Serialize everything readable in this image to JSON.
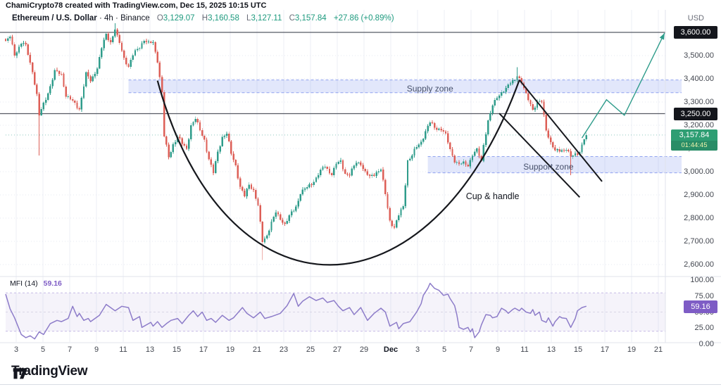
{
  "attribution": "ChamiCrypto78 created with TradingView.com, Dec 15, 2025 10:15 UTC",
  "legend": {
    "symbol": "Ethereum / U.S. Dollar",
    "separator": "·",
    "interval": "4h",
    "exchange": "Binance",
    "ohlc": [
      {
        "k": "O",
        "v": "3,129.07"
      },
      {
        "k": "H",
        "v": "3,160.58"
      },
      {
        "k": "L",
        "v": "3,127.11"
      },
      {
        "k": "C",
        "v": "3,157.84"
      }
    ],
    "change": "+27.86 (+0.89%)"
  },
  "price_scale": {
    "currency_label": "USD",
    "ticks": [
      {
        "v": 3600,
        "t": "3,600.00"
      },
      {
        "v": 3500,
        "t": "3,500.00"
      },
      {
        "v": 3400,
        "t": "3,400.00"
      },
      {
        "v": 3300,
        "t": "3,300.00"
      },
      {
        "v": 3200,
        "t": "3,200.00"
      },
      {
        "v": 3100,
        "t": "3,100.00"
      },
      {
        "v": 3000,
        "t": "3,000.00"
      },
      {
        "v": 2900,
        "t": "2,900.00"
      },
      {
        "v": 2800,
        "t": "2,800.00"
      },
      {
        "v": 2700,
        "t": "2,700.00"
      },
      {
        "v": 2600,
        "t": "2,600.00"
      }
    ],
    "line_labels": [
      {
        "value": 3600,
        "text": "3,600.00"
      },
      {
        "value": 3250,
        "text": "3,250.00"
      }
    ],
    "last_price": {
      "value": 3157.84,
      "text": "3,157.84",
      "countdown": "01:44:45"
    }
  },
  "time_scale": {
    "labels": [
      "3",
      "5",
      "7",
      "9",
      "11",
      "13",
      "15",
      "17",
      "19",
      "21",
      "23",
      "25",
      "27",
      "29",
      "Dec",
      "3",
      "5",
      "7",
      "9",
      "11",
      "13",
      "15",
      "17",
      "19",
      "21"
    ]
  },
  "chart_data": {
    "type": "candlestick",
    "title": "Ethereum / U.S. Dollar · 4h · Binance",
    "ylabel": "USD",
    "ylim": [
      2600,
      3660
    ],
    "candle_count": 261,
    "last_close": 3157.84,
    "close_path_anchors": [
      [
        0,
        3560
      ],
      [
        2,
        3578
      ],
      [
        4,
        3505
      ],
      [
        7,
        3555
      ],
      [
        9,
        3540
      ],
      [
        12,
        3435
      ],
      [
        14,
        3330
      ],
      [
        15,
        3240
      ],
      [
        17,
        3290
      ],
      [
        20,
        3370
      ],
      [
        22,
        3430
      ],
      [
        25,
        3420
      ],
      [
        27,
        3330
      ],
      [
        30,
        3300
      ],
      [
        33,
        3272
      ],
      [
        36,
        3420
      ],
      [
        38,
        3390
      ],
      [
        41,
        3450
      ],
      [
        43,
        3530
      ],
      [
        45,
        3590
      ],
      [
        47,
        3560
      ],
      [
        49,
        3615
      ],
      [
        50,
        3580
      ],
      [
        53,
        3490
      ],
      [
        55,
        3455
      ],
      [
        57,
        3500
      ],
      [
        60,
        3540
      ],
      [
        62,
        3570
      ],
      [
        64,
        3550
      ],
      [
        66,
        3555
      ],
      [
        68,
        3480
      ],
      [
        70,
        3340
      ],
      [
        71,
        3150
      ],
      [
        73,
        3062
      ],
      [
        75,
        3120
      ],
      [
        77,
        3150
      ],
      [
        79,
        3118
      ],
      [
        81,
        3100
      ],
      [
        83,
        3200
      ],
      [
        85,
        3225
      ],
      [
        87,
        3180
      ],
      [
        89,
        3140
      ],
      [
        91,
        3050
      ],
      [
        93,
        2992
      ],
      [
        95,
        3090
      ],
      [
        97,
        3150
      ],
      [
        99,
        3160
      ],
      [
        101,
        3080
      ],
      [
        103,
        3030
      ],
      [
        105,
        2930
      ],
      [
        107,
        2892
      ],
      [
        109,
        2950
      ],
      [
        111,
        2920
      ],
      [
        113,
        2850
      ],
      [
        115,
        2700
      ],
      [
        117,
        2730
      ],
      [
        119,
        2780
      ],
      [
        121,
        2822
      ],
      [
        123,
        2800
      ],
      [
        125,
        2775
      ],
      [
        128,
        2820
      ],
      [
        130,
        2852
      ],
      [
        132,
        2910
      ],
      [
        135,
        2930
      ],
      [
        137,
        2950
      ],
      [
        139,
        2975
      ],
      [
        141,
        3000
      ],
      [
        143,
        3025
      ],
      [
        146,
        2990
      ],
      [
        148,
        3030
      ],
      [
        150,
        3045
      ],
      [
        152,
        2995
      ],
      [
        154,
        2985
      ],
      [
        157,
        3040
      ],
      [
        159,
        3038
      ],
      [
        161,
        2995
      ],
      [
        163,
        2975
      ],
      [
        166,
        3000
      ],
      [
        168,
        3010
      ],
      [
        170,
        2900
      ],
      [
        172,
        2790
      ],
      [
        174,
        2762
      ],
      [
        176,
        2810
      ],
      [
        178,
        2850
      ],
      [
        180,
        3050
      ],
      [
        182,
        3070
      ],
      [
        184,
        3105
      ],
      [
        186,
        3130
      ],
      [
        188,
        3175
      ],
      [
        190,
        3210
      ],
      [
        192,
        3190
      ],
      [
        195,
        3185
      ],
      [
        197,
        3155
      ],
      [
        199,
        3095
      ],
      [
        201,
        3050
      ],
      [
        203,
        3030
      ],
      [
        205,
        3035
      ],
      [
        207,
        3030
      ],
      [
        209,
        3075
      ],
      [
        211,
        3090
      ],
      [
        213,
        3045
      ],
      [
        214,
        3120
      ],
      [
        216,
        3220
      ],
      [
        218,
        3280
      ],
      [
        220,
        3320
      ],
      [
        222,
        3345
      ],
      [
        224,
        3355
      ],
      [
        226,
        3380
      ],
      [
        228,
        3400
      ],
      [
        229,
        3420
      ],
      [
        231,
        3380
      ],
      [
        233,
        3330
      ],
      [
        235,
        3295
      ],
      [
        236,
        3270
      ],
      [
        238,
        3295
      ],
      [
        240,
        3300
      ],
      [
        242,
        3185
      ],
      [
        244,
        3125
      ],
      [
        246,
        3085
      ],
      [
        247,
        3090
      ],
      [
        249,
        3095
      ],
      [
        251,
        3100
      ],
      [
        253,
        3060
      ],
      [
        255,
        3075
      ],
      [
        257,
        3090
      ],
      [
        259,
        3140
      ],
      [
        260,
        3157.84
      ]
    ],
    "wick_overrides": [
      {
        "i": 15,
        "low": 3070
      },
      {
        "i": 49,
        "high": 3640
      },
      {
        "i": 115,
        "low": 2620
      },
      {
        "i": 229,
        "high": 3450
      },
      {
        "i": 253,
        "low": 2985
      }
    ],
    "marked_levels": [
      3600,
      3250
    ],
    "zones": [
      {
        "name": "supply",
        "label": "Supply zone",
        "top": 3395,
        "bottom": 3340,
        "from_index": 55,
        "label_index": 190,
        "label_price": 3361
      },
      {
        "name": "support",
        "label": "Support zone",
        "top": 3065,
        "bottom": 2995,
        "from_index": 189,
        "label_index": 243,
        "label_price": 3025
      }
    ],
    "annotations": {
      "cup": {
        "label": "Cup & handle",
        "start": [
          68,
          3392
        ],
        "ctrl1": [
          98,
          2334
        ],
        "ctrl2": [
          190,
          2334
        ],
        "end": [
          230,
          3395
        ],
        "label_pos": [
          218,
          2893
        ]
      },
      "handle_lines": [
        [
          [
            230,
            3395
          ],
          [
            267,
            2958
          ]
        ],
        [
          [
            221,
            3251
          ],
          [
            257,
            2890
          ]
        ]
      ],
      "projection": [
        [
          258,
          3145
        ],
        [
          269,
          3310
        ],
        [
          277,
          3243
        ],
        [
          295,
          3597
        ]
      ]
    },
    "indicator": {
      "name": "MFI",
      "params": "(14)",
      "value_text": "59.16",
      "value": 59.16,
      "bands": {
        "upper": 80,
        "middle": 50,
        "lower": 20
      },
      "ticks": [
        {
          "v": 100,
          "t": "100.00"
        },
        {
          "v": 75,
          "t": "75.00"
        },
        {
          "v": 50,
          "t": "50.00"
        },
        {
          "v": 25,
          "t": "25.00"
        },
        {
          "v": 0,
          "t": "0.00"
        }
      ],
      "series": [
        [
          0,
          78
        ],
        [
          2,
          55
        ],
        [
          4,
          41
        ],
        [
          7,
          15
        ],
        [
          9,
          10
        ],
        [
          11,
          13
        ],
        [
          13,
          8
        ],
        [
          15,
          19
        ],
        [
          17,
          15
        ],
        [
          20,
          32
        ],
        [
          23,
          37
        ],
        [
          25,
          35
        ],
        [
          28,
          40
        ],
        [
          30,
          59
        ],
        [
          32,
          43
        ],
        [
          33,
          48
        ],
        [
          35,
          37
        ],
        [
          37,
          40
        ],
        [
          38,
          35
        ],
        [
          42,
          45
        ],
        [
          45,
          62
        ],
        [
          47,
          57
        ],
        [
          49,
          52
        ],
        [
          52,
          59
        ],
        [
          55,
          57
        ],
        [
          57,
          37
        ],
        [
          60,
          43
        ],
        [
          61,
          26
        ],
        [
          65,
          34
        ],
        [
          66,
          28
        ],
        [
          68,
          35
        ],
        [
          70,
          26
        ],
        [
          72,
          32
        ],
        [
          74,
          37
        ],
        [
          77,
          40
        ],
        [
          79,
          32
        ],
        [
          82,
          45
        ],
        [
          84,
          52
        ],
        [
          86,
          43
        ],
        [
          88,
          50
        ],
        [
          90,
          37
        ],
        [
          92,
          40
        ],
        [
          94,
          34
        ],
        [
          97,
          45
        ],
        [
          100,
          37
        ],
        [
          102,
          41
        ],
        [
          106,
          57
        ],
        [
          108,
          48
        ],
        [
          111,
          41
        ],
        [
          114,
          50
        ],
        [
          116,
          40
        ],
        [
          119,
          43
        ],
        [
          123,
          48
        ],
        [
          126,
          60
        ],
        [
          129,
          79
        ],
        [
          131,
          59
        ],
        [
          133,
          67
        ],
        [
          136,
          74
        ],
        [
          139,
          68
        ],
        [
          142,
          72
        ],
        [
          144,
          65
        ],
        [
          147,
          68
        ],
        [
          149,
          59
        ],
        [
          151,
          52
        ],
        [
          154,
          57
        ],
        [
          156,
          46
        ],
        [
          159,
          57
        ],
        [
          162,
          37
        ],
        [
          165,
          48
        ],
        [
          168,
          56
        ],
        [
          170,
          50
        ],
        [
          172,
          28
        ],
        [
          175,
          34
        ],
        [
          176,
          24
        ],
        [
          178,
          32
        ],
        [
          181,
          35
        ],
        [
          183,
          45
        ],
        [
          184,
          50
        ],
        [
          186,
          63
        ],
        [
          187,
          76
        ],
        [
          189,
          87
        ],
        [
          190,
          95
        ],
        [
          192,
          87
        ],
        [
          194,
          84
        ],
        [
          196,
          76
        ],
        [
          198,
          78
        ],
        [
          199,
          71
        ],
        [
          201,
          60
        ],
        [
          202,
          46
        ],
        [
          203,
          26
        ],
        [
          205,
          23
        ],
        [
          207,
          26
        ],
        [
          208,
          19
        ],
        [
          209,
          24
        ],
        [
          210,
          10
        ],
        [
          212,
          19
        ],
        [
          213,
          30
        ],
        [
          215,
          46
        ],
        [
          217,
          45
        ],
        [
          218,
          41
        ],
        [
          220,
          43
        ],
        [
          222,
          56
        ],
        [
          224,
          52
        ],
        [
          225,
          48
        ],
        [
          227,
          54
        ],
        [
          228,
          56
        ],
        [
          230,
          52
        ],
        [
          231,
          56
        ],
        [
          233,
          50
        ],
        [
          235,
          48
        ],
        [
          236,
          54
        ],
        [
          237,
          45
        ],
        [
          239,
          50
        ],
        [
          240,
          37
        ],
        [
          242,
          34
        ],
        [
          243,
          41
        ],
        [
          245,
          28
        ],
        [
          246,
          35
        ],
        [
          248,
          43
        ],
        [
          249,
          41
        ],
        [
          251,
          40
        ],
        [
          253,
          26
        ],
        [
          255,
          40
        ],
        [
          256,
          52
        ],
        [
          258,
          57
        ],
        [
          260,
          59.16
        ]
      ]
    }
  },
  "footer": {
    "brand": "TradingView"
  },
  "colors": {
    "up": "#2f9c8b",
    "down": "#dd5f57",
    "accent_teal": "#1d9a7e",
    "projection": "#2f9c8b",
    "annotation_black": "#16181d",
    "zone_fill": "rgba(112,136,235,0.20)",
    "zone_border": "rgba(112,136,235,0.75)",
    "mfi_line": "#8d7cc9",
    "mfi_band_fill": "rgba(141,124,201,0.09)",
    "mfi_band_line": "#c6bae6",
    "mfi_mid_line": "#d9d6e6",
    "mfi_label_bg": "#7e5cc5",
    "black_label_bg": "#14161c",
    "last_label_bg": "#2e9e73",
    "level_line": "#565a63",
    "grid": "#eceff6",
    "axis_border": "#e0e3eb"
  }
}
